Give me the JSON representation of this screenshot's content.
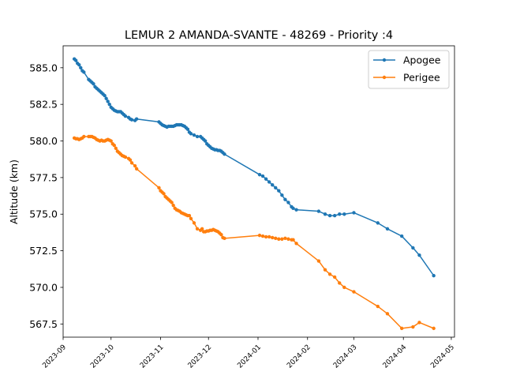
{
  "chart_data": {
    "type": "line",
    "title": "LEMUR 2 AMANDA-SVANTE - 48269 - Priority :4",
    "xlabel": "",
    "ylabel": "Altitude (km)",
    "ylim": [
      566.6,
      586.5
    ],
    "xlim": [
      "2023-09-01",
      "2024-05-03"
    ],
    "grid": false,
    "legend_position": "top-right",
    "y_ticks": [
      "567.5",
      "570.0",
      "572.5",
      "575.0",
      "577.5",
      "580.0",
      "582.5",
      "585.0"
    ],
    "x_ticks": [
      "2023-09",
      "2023-10",
      "2023-11",
      "2023-12",
      "2024-01",
      "2024-02",
      "2024-03",
      "2024-04",
      "2024-05"
    ],
    "series": [
      {
        "name": "Apogee",
        "color": "#1f77b4",
        "points": [
          [
            "2023-09-08",
            585.6
          ],
          [
            "2023-09-09",
            585.5
          ],
          [
            "2023-09-10",
            585.3
          ],
          [
            "2023-09-11",
            585.2
          ],
          [
            "2023-09-12",
            585.0
          ],
          [
            "2023-09-13",
            584.8
          ],
          [
            "2023-09-14",
            584.7
          ],
          [
            "2023-09-17",
            584.2
          ],
          [
            "2023-09-18",
            584.1
          ],
          [
            "2023-09-19",
            584.0
          ],
          [
            "2023-09-20",
            583.9
          ],
          [
            "2023-09-21",
            583.7
          ],
          [
            "2023-09-22",
            583.6
          ],
          [
            "2023-09-23",
            583.5
          ],
          [
            "2023-09-24",
            583.4
          ],
          [
            "2023-09-25",
            583.3
          ],
          [
            "2023-09-26",
            583.2
          ],
          [
            "2023-09-27",
            583.1
          ],
          [
            "2023-09-28",
            582.9
          ],
          [
            "2023-09-29",
            582.7
          ],
          [
            "2023-09-30",
            582.5
          ],
          [
            "2023-10-01",
            582.3
          ],
          [
            "2023-10-02",
            582.2
          ],
          [
            "2023-10-03",
            582.1
          ],
          [
            "2023-10-04",
            582.05
          ],
          [
            "2023-10-05",
            582.0
          ],
          [
            "2023-10-06",
            582.0
          ],
          [
            "2023-10-07",
            582.0
          ],
          [
            "2023-10-08",
            581.9
          ],
          [
            "2023-10-09",
            581.8
          ],
          [
            "2023-10-10",
            581.7
          ],
          [
            "2023-10-12",
            581.6
          ],
          [
            "2023-10-13",
            581.5
          ],
          [
            "2023-10-14",
            581.45
          ],
          [
            "2023-10-16",
            581.4
          ],
          [
            "2023-10-17",
            581.5
          ],
          [
            "2023-10-31",
            581.3
          ],
          [
            "2023-11-01",
            581.2
          ],
          [
            "2023-11-02",
            581.1
          ],
          [
            "2023-11-03",
            581.05
          ],
          [
            "2023-11-04",
            581.0
          ],
          [
            "2023-11-05",
            580.95
          ],
          [
            "2023-11-06",
            581.0
          ],
          [
            "2023-11-07",
            581.0
          ],
          [
            "2023-11-08",
            581.0
          ],
          [
            "2023-11-09",
            581.0
          ],
          [
            "2023-11-10",
            581.05
          ],
          [
            "2023-11-11",
            581.1
          ],
          [
            "2023-11-12",
            581.1
          ],
          [
            "2023-11-13",
            581.1
          ],
          [
            "2023-11-14",
            581.1
          ],
          [
            "2023-11-15",
            581.05
          ],
          [
            "2023-11-16",
            581.0
          ],
          [
            "2023-11-17",
            580.9
          ],
          [
            "2023-11-18",
            580.8
          ],
          [
            "2023-11-19",
            580.6
          ],
          [
            "2023-11-20",
            580.5
          ],
          [
            "2023-11-22",
            580.4
          ],
          [
            "2023-11-24",
            580.3
          ],
          [
            "2023-11-26",
            580.3
          ],
          [
            "2023-11-27",
            580.2
          ],
          [
            "2023-11-28",
            580.1
          ],
          [
            "2023-11-29",
            580.0
          ],
          [
            "2023-11-30",
            579.8
          ],
          [
            "2023-12-01",
            579.7
          ],
          [
            "2023-12-02",
            579.6
          ],
          [
            "2023-12-03",
            579.5
          ],
          [
            "2023-12-04",
            579.45
          ],
          [
            "2023-12-05",
            579.4
          ],
          [
            "2023-12-06",
            579.4
          ],
          [
            "2023-12-07",
            579.35
          ],
          [
            "2023-12-08",
            579.35
          ],
          [
            "2023-12-09",
            579.3
          ],
          [
            "2023-12-10",
            579.2
          ],
          [
            "2023-12-11",
            579.1
          ],
          [
            "2024-01-02",
            577.7
          ],
          [
            "2024-01-04",
            577.6
          ],
          [
            "2024-01-06",
            577.4
          ],
          [
            "2024-01-08",
            577.2
          ],
          [
            "2024-01-10",
            577.0
          ],
          [
            "2024-01-12",
            576.8
          ],
          [
            "2024-01-14",
            576.6
          ],
          [
            "2024-01-16",
            576.3
          ],
          [
            "2024-01-18",
            576.0
          ],
          [
            "2024-01-20",
            575.8
          ],
          [
            "2024-01-22",
            575.5
          ],
          [
            "2024-01-23",
            575.4
          ],
          [
            "2024-01-25",
            575.3
          ],
          [
            "2024-02-08",
            575.2
          ],
          [
            "2024-02-12",
            575.0
          ],
          [
            "2024-02-15",
            574.9
          ],
          [
            "2024-02-18",
            574.9
          ],
          [
            "2024-02-21",
            575.0
          ],
          [
            "2024-02-24",
            575.0
          ],
          [
            "2024-03-01",
            575.1
          ],
          [
            "2024-03-16",
            574.4
          ],
          [
            "2024-03-22",
            574.0
          ],
          [
            "2024-03-31",
            573.5
          ],
          [
            "2024-04-07",
            572.7
          ],
          [
            "2024-04-11",
            572.2
          ],
          [
            "2024-04-20",
            570.8
          ]
        ]
      },
      {
        "name": "Perigee",
        "color": "#ff7f0e",
        "points": [
          [
            "2023-09-08",
            580.2
          ],
          [
            "2023-09-09",
            580.15
          ],
          [
            "2023-09-10",
            580.15
          ],
          [
            "2023-09-11",
            580.1
          ],
          [
            "2023-09-12",
            580.15
          ],
          [
            "2023-09-13",
            580.2
          ],
          [
            "2023-09-14",
            580.3
          ],
          [
            "2023-09-17",
            580.3
          ],
          [
            "2023-09-18",
            580.3
          ],
          [
            "2023-09-19",
            580.3
          ],
          [
            "2023-09-20",
            580.25
          ],
          [
            "2023-09-21",
            580.2
          ],
          [
            "2023-09-22",
            580.1
          ],
          [
            "2023-09-23",
            580.05
          ],
          [
            "2023-09-24",
            580.0
          ],
          [
            "2023-09-25",
            580.05
          ],
          [
            "2023-09-26",
            580.0
          ],
          [
            "2023-09-27",
            580.0
          ],
          [
            "2023-09-28",
            580.05
          ],
          [
            "2023-09-29",
            580.1
          ],
          [
            "2023-09-30",
            580.05
          ],
          [
            "2023-10-01",
            580.0
          ],
          [
            "2023-10-02",
            579.8
          ],
          [
            "2023-10-03",
            579.7
          ],
          [
            "2023-10-04",
            579.5
          ],
          [
            "2023-10-05",
            579.3
          ],
          [
            "2023-10-06",
            579.2
          ],
          [
            "2023-10-07",
            579.1
          ],
          [
            "2023-10-08",
            579.0
          ],
          [
            "2023-10-09",
            578.95
          ],
          [
            "2023-10-10",
            578.9
          ],
          [
            "2023-10-12",
            578.8
          ],
          [
            "2023-10-13",
            578.7
          ],
          [
            "2023-10-14",
            578.5
          ],
          [
            "2023-10-16",
            578.3
          ],
          [
            "2023-10-17",
            578.1
          ],
          [
            "2023-10-31",
            576.8
          ],
          [
            "2023-11-01",
            576.6
          ],
          [
            "2023-11-02",
            576.5
          ],
          [
            "2023-11-03",
            576.4
          ],
          [
            "2023-11-04",
            576.2
          ],
          [
            "2023-11-05",
            576.1
          ],
          [
            "2023-11-06",
            576.0
          ],
          [
            "2023-11-07",
            575.9
          ],
          [
            "2023-11-08",
            575.8
          ],
          [
            "2023-11-09",
            575.6
          ],
          [
            "2023-11-10",
            575.4
          ],
          [
            "2023-11-11",
            575.3
          ],
          [
            "2023-11-12",
            575.25
          ],
          [
            "2023-11-13",
            575.2
          ],
          [
            "2023-11-14",
            575.1
          ],
          [
            "2023-11-15",
            575.05
          ],
          [
            "2023-11-16",
            575.0
          ],
          [
            "2023-11-17",
            574.95
          ],
          [
            "2023-11-18",
            574.9
          ],
          [
            "2023-11-19",
            574.9
          ],
          [
            "2023-11-20",
            574.7
          ],
          [
            "2023-11-22",
            574.4
          ],
          [
            "2023-11-24",
            574.0
          ],
          [
            "2023-11-26",
            573.9
          ],
          [
            "2023-11-27",
            574.0
          ],
          [
            "2023-11-28",
            573.8
          ],
          [
            "2023-11-29",
            573.8
          ],
          [
            "2023-11-30",
            573.85
          ],
          [
            "2023-12-01",
            573.85
          ],
          [
            "2023-12-02",
            573.9
          ],
          [
            "2023-12-03",
            573.9
          ],
          [
            "2023-12-04",
            573.95
          ],
          [
            "2023-12-05",
            573.9
          ],
          [
            "2023-12-06",
            573.85
          ],
          [
            "2023-12-07",
            573.8
          ],
          [
            "2023-12-08",
            573.7
          ],
          [
            "2023-12-09",
            573.6
          ],
          [
            "2023-12-10",
            573.4
          ],
          [
            "2023-12-11",
            573.35
          ],
          [
            "2024-01-02",
            573.55
          ],
          [
            "2024-01-04",
            573.5
          ],
          [
            "2024-01-06",
            573.45
          ],
          [
            "2024-01-08",
            573.45
          ],
          [
            "2024-01-10",
            573.4
          ],
          [
            "2024-01-12",
            573.35
          ],
          [
            "2024-01-14",
            573.3
          ],
          [
            "2024-01-16",
            573.3
          ],
          [
            "2024-01-18",
            573.35
          ],
          [
            "2024-01-20",
            573.3
          ],
          [
            "2024-01-22",
            573.25
          ],
          [
            "2024-01-23",
            573.25
          ],
          [
            "2024-01-25",
            573.0
          ],
          [
            "2024-02-08",
            571.8
          ],
          [
            "2024-02-12",
            571.2
          ],
          [
            "2024-02-15",
            570.9
          ],
          [
            "2024-02-18",
            570.7
          ],
          [
            "2024-02-21",
            570.3
          ],
          [
            "2024-02-24",
            570.0
          ],
          [
            "2024-03-01",
            569.7
          ],
          [
            "2024-03-16",
            568.7
          ],
          [
            "2024-03-22",
            568.2
          ],
          [
            "2024-03-31",
            567.2
          ],
          [
            "2024-04-07",
            567.3
          ],
          [
            "2024-04-11",
            567.6
          ],
          [
            "2024-04-20",
            567.2
          ]
        ]
      }
    ]
  }
}
